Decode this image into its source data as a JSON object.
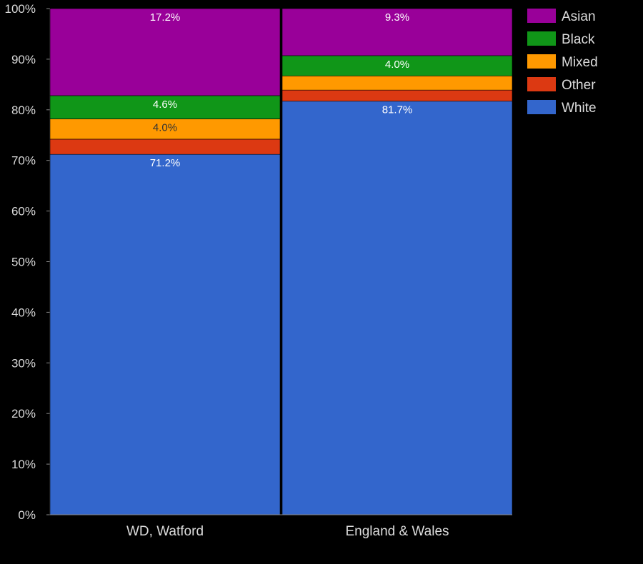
{
  "chart_data": {
    "type": "bar",
    "stacked": true,
    "categories": [
      "WD, Watford",
      "England & Wales"
    ],
    "series": [
      {
        "name": "White",
        "color": "#3366cc",
        "values": [
          71.2,
          81.7
        ],
        "labels": [
          "71.2%",
          "81.7%"
        ],
        "label_color": "#ffffff"
      },
      {
        "name": "Other",
        "color": "#dc3912",
        "values": [
          3.0,
          2.2
        ],
        "labels": [
          "",
          ""
        ],
        "label_color": "#ffffff"
      },
      {
        "name": "Mixed",
        "color": "#ff9900",
        "values": [
          4.0,
          2.8
        ],
        "labels": [
          "4.0%",
          ""
        ],
        "label_color": "#333333"
      },
      {
        "name": "Black",
        "color": "#109618",
        "values": [
          4.6,
          4.0
        ],
        "labels": [
          "4.6%",
          "4.0%"
        ],
        "label_color": "#ffffff"
      },
      {
        "name": "Asian",
        "color": "#990099",
        "values": [
          17.2,
          9.3
        ],
        "labels": [
          "17.2%",
          "9.3%"
        ],
        "label_color": "#ffffff"
      }
    ],
    "legend_order": [
      "Asian",
      "Black",
      "Mixed",
      "Other",
      "White"
    ],
    "yticks": [
      "0%",
      "10%",
      "20%",
      "30%",
      "40%",
      "50%",
      "60%",
      "70%",
      "80%",
      "90%",
      "100%"
    ],
    "ylim": [
      0,
      100
    ],
    "legend_position": "right",
    "grid": false,
    "background": "#000000"
  }
}
